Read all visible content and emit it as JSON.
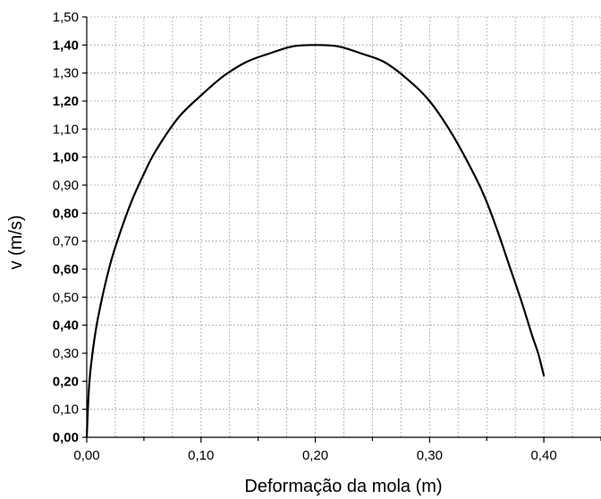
{
  "chart_data": {
    "type": "line",
    "title": "",
    "xlabel": "Deformação da mola (m)",
    "ylabel": "v (m/s)",
    "xlim": [
      0.0,
      0.45
    ],
    "ylim": [
      0.0,
      1.5
    ],
    "grid": true,
    "line_color": "#000000",
    "x_ticks": [
      {
        "value": 0.0,
        "label": "0,00"
      },
      {
        "value": 0.1,
        "label": "0,10"
      },
      {
        "value": 0.2,
        "label": "0,20"
      },
      {
        "value": 0.3,
        "label": "0,30"
      },
      {
        "value": 0.4,
        "label": "0,40"
      }
    ],
    "y_ticks": [
      {
        "value": 0.0,
        "label": "0,00",
        "bold": true
      },
      {
        "value": 0.1,
        "label": "0,10",
        "bold": false
      },
      {
        "value": 0.2,
        "label": "0,20",
        "bold": true
      },
      {
        "value": 0.3,
        "label": "0,30",
        "bold": false
      },
      {
        "value": 0.4,
        "label": "0,40",
        "bold": true
      },
      {
        "value": 0.5,
        "label": "0,50",
        "bold": false
      },
      {
        "value": 0.6,
        "label": "0,60",
        "bold": true
      },
      {
        "value": 0.7,
        "label": "0,70",
        "bold": false
      },
      {
        "value": 0.8,
        "label": "0,80",
        "bold": true
      },
      {
        "value": 0.9,
        "label": "0,90",
        "bold": false
      },
      {
        "value": 1.0,
        "label": "1,00",
        "bold": true
      },
      {
        "value": 1.1,
        "label": "1,10",
        "bold": false
      },
      {
        "value": 1.2,
        "label": "1,20",
        "bold": true
      },
      {
        "value": 1.3,
        "label": "1,30",
        "bold": false
      },
      {
        "value": 1.4,
        "label": "1,40",
        "bold": true
      },
      {
        "value": 1.5,
        "label": "1,50",
        "bold": false
      }
    ],
    "series": [
      {
        "x": [
          0.0,
          0.002,
          0.005,
          0.01,
          0.02,
          0.03,
          0.04,
          0.05,
          0.06,
          0.08,
          0.1,
          0.12,
          0.14,
          0.16,
          0.18,
          0.2,
          0.22,
          0.24,
          0.26,
          0.28,
          0.3,
          0.32,
          0.34,
          0.35,
          0.36,
          0.37,
          0.38,
          0.39,
          0.395,
          0.4
        ],
        "y": [
          0.0,
          0.18,
          0.3,
          0.43,
          0.61,
          0.74,
          0.85,
          0.94,
          1.02,
          1.14,
          1.22,
          1.29,
          1.34,
          1.37,
          1.395,
          1.4,
          1.395,
          1.37,
          1.34,
          1.28,
          1.2,
          1.08,
          0.93,
          0.84,
          0.73,
          0.61,
          0.49,
          0.36,
          0.3,
          0.22
        ]
      }
    ]
  }
}
